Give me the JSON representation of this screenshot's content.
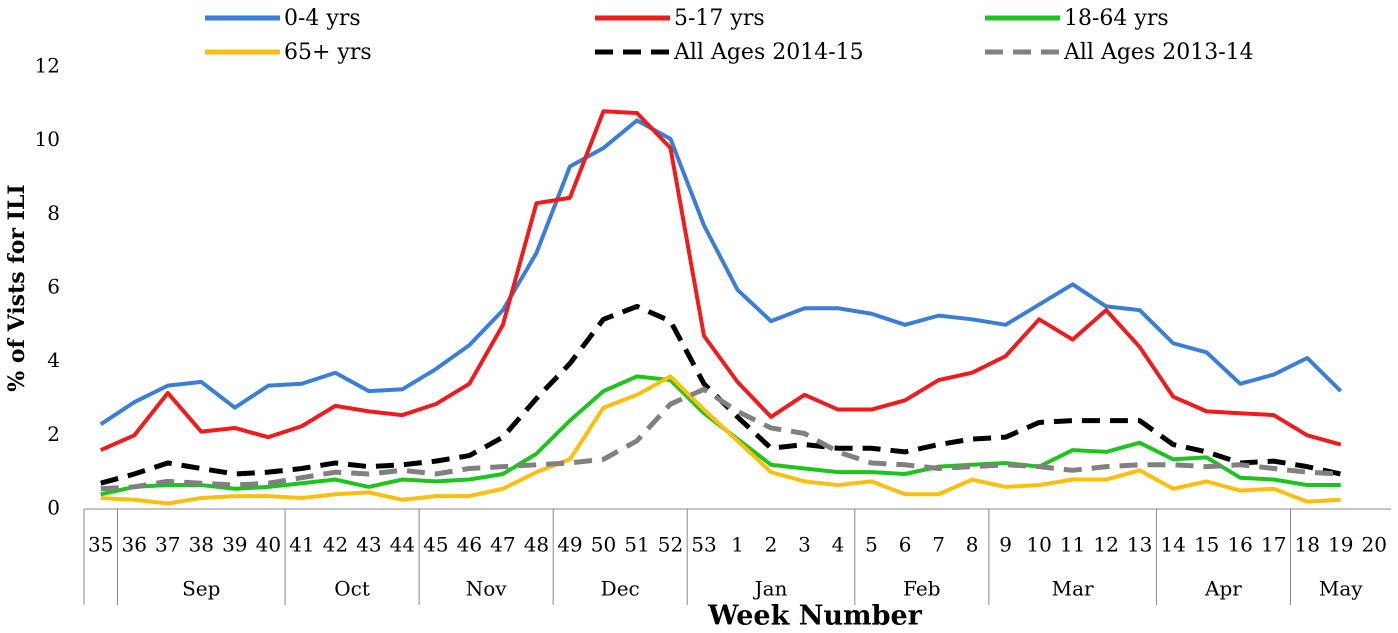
{
  "chart_data": {
    "type": "line",
    "y_label": "% of Vists for ILI",
    "x_label": "Week Number",
    "categories": [
      "35",
      "36",
      "37",
      "38",
      "39",
      "40",
      "41",
      "42",
      "43",
      "44",
      "45",
      "46",
      "47",
      "48",
      "49",
      "50",
      "51",
      "52",
      "53",
      "1",
      "2",
      "3",
      "4",
      "5",
      "6",
      "7",
      "8",
      "9",
      "10",
      "11",
      "12",
      "13",
      "14",
      "15",
      "16",
      "17",
      "18",
      "19",
      "20"
    ],
    "months": [
      null,
      "Sep",
      "Sep",
      "Sep",
      "Sep",
      "Sep",
      "Oct",
      "Oct",
      "Oct",
      "Oct",
      "Nov",
      "Nov",
      "Nov",
      "Nov",
      "Dec",
      "Dec",
      "Dec",
      "Dec",
      "Jan",
      "Jan",
      "Jan",
      "Jan",
      "Jan",
      "Feb",
      "Feb",
      "Feb",
      "Feb",
      "Mar",
      "Mar",
      "Mar",
      "Mar",
      "Mar",
      "Apr",
      "Apr",
      "Apr",
      "Apr",
      "May",
      "May",
      "May"
    ],
    "ylim": [
      0,
      12
    ],
    "yticks": [
      0,
      2,
      4,
      6,
      8,
      10,
      12
    ],
    "series": [
      {
        "name": "0-4 yrs",
        "color": "#3a7fd5",
        "dashed": false,
        "values": [
          2.3,
          2.9,
          3.35,
          3.45,
          2.75,
          3.35,
          3.4,
          3.7,
          3.2,
          3.25,
          3.8,
          4.45,
          5.4,
          6.95,
          9.3,
          9.8,
          10.55,
          10.05,
          7.7,
          5.95,
          5.1,
          5.45,
          5.45,
          5.3,
          5.0,
          5.25,
          5.15,
          5.0,
          5.55,
          6.1,
          5.5,
          5.4,
          4.5,
          4.25,
          3.4,
          3.65,
          4.1,
          3.2,
          null
        ]
      },
      {
        "name": "5-17 yrs",
        "color": "#ee1c1c",
        "dashed": false,
        "values": [
          1.6,
          2.0,
          3.15,
          2.1,
          2.2,
          1.95,
          2.25,
          2.8,
          2.65,
          2.55,
          2.85,
          3.4,
          5.0,
          8.3,
          8.45,
          10.8,
          10.75,
          9.8,
          4.7,
          3.45,
          2.5,
          3.1,
          2.7,
          2.7,
          2.95,
          3.5,
          3.7,
          4.15,
          5.15,
          4.6,
          5.4,
          4.4,
          3.05,
          2.65,
          2.6,
          2.55,
          2.0,
          1.75,
          null
        ]
      },
      {
        "name": "18-64 yrs",
        "color": "#1ec41e",
        "dashed": false,
        "values": [
          0.4,
          0.6,
          0.65,
          0.65,
          0.55,
          0.6,
          0.7,
          0.8,
          0.6,
          0.8,
          0.75,
          0.8,
          0.95,
          1.5,
          2.4,
          3.2,
          3.6,
          3.5,
          2.6,
          1.9,
          1.2,
          1.1,
          1.0,
          1.0,
          0.95,
          1.15,
          1.2,
          1.25,
          1.15,
          1.6,
          1.55,
          1.8,
          1.35,
          1.4,
          0.85,
          0.8,
          0.65,
          0.65,
          null
        ]
      },
      {
        "name": "65+ yrs",
        "color": "#fcbf0f",
        "dashed": false,
        "values": [
          0.3,
          0.25,
          0.15,
          0.3,
          0.35,
          0.35,
          0.3,
          0.4,
          0.45,
          0.25,
          0.35,
          0.35,
          0.55,
          1.0,
          1.35,
          2.75,
          3.1,
          3.6,
          2.7,
          1.85,
          1.0,
          0.75,
          0.65,
          0.75,
          0.4,
          0.4,
          0.8,
          0.6,
          0.65,
          0.8,
          0.8,
          1.05,
          0.55,
          0.75,
          0.5,
          0.55,
          0.2,
          0.25,
          null
        ]
      },
      {
        "name": "All Ages 2014-15",
        "color": "#000000",
        "dashed": true,
        "values": [
          0.7,
          0.95,
          1.25,
          1.1,
          0.95,
          1.0,
          1.1,
          1.25,
          1.15,
          1.2,
          1.3,
          1.45,
          1.95,
          3.0,
          3.95,
          5.15,
          5.5,
          5.1,
          3.4,
          2.5,
          1.65,
          1.75,
          1.65,
          1.65,
          1.55,
          1.75,
          1.9,
          1.95,
          2.35,
          2.4,
          2.4,
          2.4,
          1.75,
          1.55,
          1.25,
          1.3,
          1.15,
          0.95,
          null
        ]
      },
      {
        "name": "All Ages 2013-14",
        "color": "#808080",
        "dashed": true,
        "values": [
          0.55,
          0.6,
          0.75,
          0.7,
          0.65,
          0.7,
          0.85,
          1.0,
          0.95,
          1.05,
          0.95,
          1.1,
          1.15,
          1.2,
          1.25,
          1.35,
          1.85,
          2.85,
          3.25,
          2.65,
          2.2,
          2.05,
          1.55,
          1.25,
          1.2,
          1.1,
          1.15,
          1.2,
          1.15,
          1.05,
          1.15,
          1.2,
          1.2,
          1.15,
          1.2,
          1.1,
          1.0,
          0.95,
          null
        ]
      }
    ]
  }
}
